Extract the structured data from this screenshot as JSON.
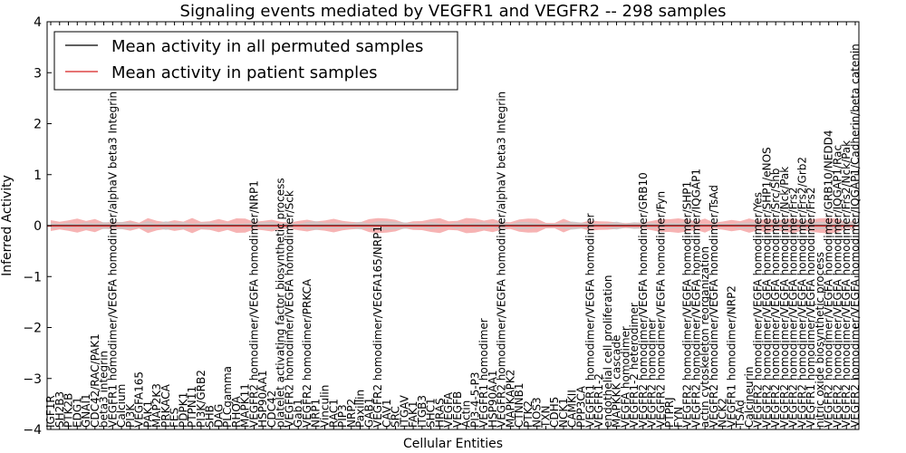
{
  "chart_data": {
    "type": "line",
    "title": "Signaling events mediated by VEGFR1 and VEGFR2 -- 298 samples",
    "xlabel": "Cellular Entities",
    "ylabel": "Inferred Activity",
    "ylim": [
      -4,
      4
    ],
    "yticks": [
      "−4",
      "−3",
      "−2",
      "−1",
      "0",
      "1",
      "2",
      "3",
      "4"
    ],
    "legend_position": "top-left",
    "series": [
      {
        "name": "Mean activity in all permuted samples",
        "color": "#000000",
        "band_color": "#c8c8c8",
        "level": 0.0
      },
      {
        "name": "Mean activity in patient samples",
        "color": "#d62020",
        "band_color": "#f08080",
        "level": 0.0
      }
    ],
    "categories": [
      "IGF1R",
      "SH2B3",
      "PTK2B",
      "EDG1",
      "GNAI1",
      "CDC42/RAC/PAK1",
      "beta3 integrin",
      "VEGFR1 homodimer/VEGFA homodimer/alphaV beta3 Integrin Complex",
      "Calcium",
      "PI3K",
      "VEGFA165",
      "PAK1",
      "MAP2K3",
      "PRKACA",
      "FES",
      "PDPK1",
      "PTPN11",
      "PI3K/GRB2",
      "SHB",
      "DAG",
      "PLCgamma",
      "RHOA",
      "MAPK11",
      "VEGFR2 homodimer/VEGFA homodimer/NRP1",
      "HSP90AA1",
      "CDC42",
      "platelet activating factor biosynthetic process",
      "VEGFR2 homodimer/VEGFA homodimer/Sck",
      "Gab1",
      "VEGFR2 homodimer/PRKCA",
      "NRP1",
      "Vinculin",
      "RAC1",
      "PIP3",
      "NRP2",
      "Paxillin",
      "GAB1",
      "VEGFR2 homodimer/VEGFA165/NRP1",
      "CAV1",
      "SRC",
      "ITGAV",
      "FAK1",
      "ITGB3",
      "SHC1",
      "HRAS",
      "VEGFA",
      "VEGFB",
      "Actin",
      "PI3-4-5-P3",
      "VEGFR1 homodimer",
      "HSP90AA1",
      "VEGFR2 homodimer/VEGFA homodimer/alphaV beta3 Integrin",
      "MAPKAPK2",
      "CTNNB1",
      "PTK2",
      "NOS3",
      "TXN",
      "CDH5",
      "NCK1",
      "CAMKII",
      "PPP3CA",
      "VEGFR1 homodimer/VEGFA homodimer",
      "VEGFR1-2",
      "endothelial cell proliferation",
      "MAPKKK cascade",
      "VEGFA homodimer",
      "VEGFR1-2 heterodimer",
      "VEGFR2 homodimer/VEGFA homodimer/GRB10",
      "VEGFR2 homodimer",
      "VEGFR2 homodimer/VEGFA homodimer/Fyn",
      "PTPRJ",
      "FYN",
      "VEGFR2 homodimer/VEGFA homodimer/SHP1",
      "VEGFR2 homodimer/VEGFA homodimer/IQGAP1",
      "actin cytoskeleton reorganization",
      "VEGFR2 homodimer/VEGFA homodimer/TsAd",
      "NCK2",
      "VEGFR1 homodimer/NRP2",
      "TSAd",
      "Calcineurin",
      "VEGFR2 homodimer/VEGFA homodimer/Yes",
      "VEGFR2 homodimer/VEGFA homodimer/SHP1/eNOS",
      "VEGFR2 homodimer/VEGFA homodimer/Src/Shb",
      "VEGFR2 homodimer/VEGFA homodimer/Nck/Pak",
      "VEGFR2 homodimer/VEGFA homodimer/Frs2",
      "VEGFR2 homodimer/VEGFA homodimer/Frs2/Grb2",
      "VEGFR1 homodimer/VEGFA homodimer/Frs2",
      "nitric oxide biosynthetic process",
      "VEGFR2 homodimer/VEGFA homodimer/GRB10/NEDD4",
      "VEGFR2 homodimer/VEGFA homodimer/IQGAP1/Rac",
      "VEGFR2 homodimer/VEGFA homodimer/Frs2/Nck/Pak",
      "VEGFR2 homodimer/VEGFA homodimer/IQGAP1/Cadherin/beta catenin"
    ]
  }
}
